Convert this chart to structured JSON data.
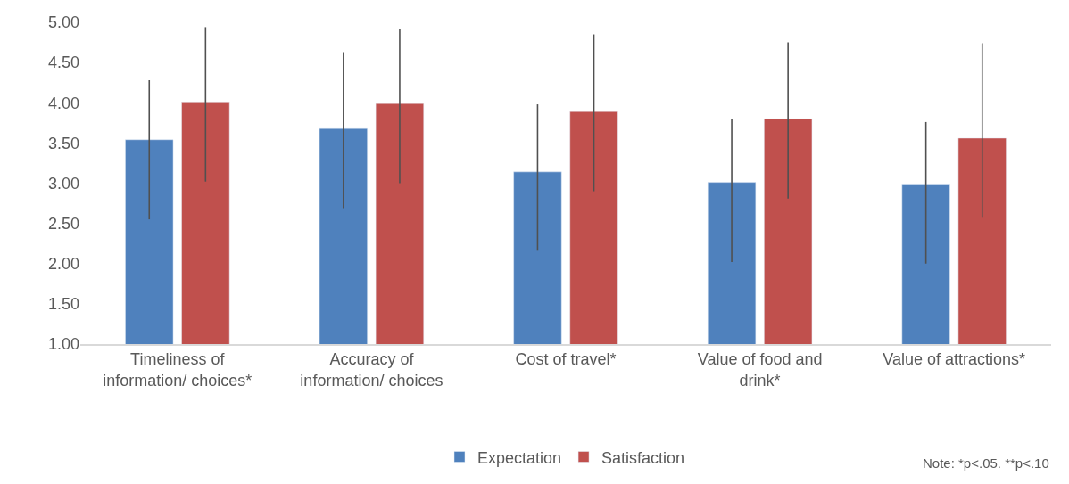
{
  "chart_data": {
    "type": "bar",
    "categories": [
      "Timeliness of information/ choices*",
      "Accuracy of information/ choices",
      "Cost of travel*",
      "Value of food and drink*",
      "Value of attractions*"
    ],
    "series": [
      {
        "name": "Expectation",
        "color": "#4f81bd",
        "values": [
          3.54,
          3.68,
          3.14,
          3.01,
          2.99
        ],
        "errors": [
          [
            2.55,
            4.28
          ],
          [
            2.69,
            4.63
          ],
          [
            2.16,
            3.98
          ],
          [
            2.02,
            3.8
          ],
          [
            2.0,
            3.76
          ]
        ]
      },
      {
        "name": "Satisfaction",
        "color": "#c0504d",
        "values": [
          4.01,
          3.99,
          3.89,
          3.8,
          3.56
        ],
        "errors": [
          [
            3.02,
            4.94
          ],
          [
            3.0,
            4.91
          ],
          [
            2.9,
            4.85
          ],
          [
            2.81,
            4.75
          ],
          [
            2.57,
            4.74
          ]
        ]
      }
    ],
    "ylim": [
      1,
      5
    ],
    "yticks": [
      {
        "value": 1,
        "label": "1.00"
      },
      {
        "value": 1.5,
        "label": "1.50"
      },
      {
        "value": 2,
        "label": "2.00"
      },
      {
        "value": 2.5,
        "label": "2.50"
      },
      {
        "value": 3,
        "label": "3.00"
      },
      {
        "value": 3.5,
        "label": "3.50"
      },
      {
        "value": 4,
        "label": "4.00"
      },
      {
        "value": 4.5,
        "label": "4.50"
      },
      {
        "value": 5,
        "label": "5.00"
      }
    ],
    "grid": false,
    "legend": "bottom",
    "annotations": [
      "Note: *p<.05. **p<.10"
    ]
  }
}
